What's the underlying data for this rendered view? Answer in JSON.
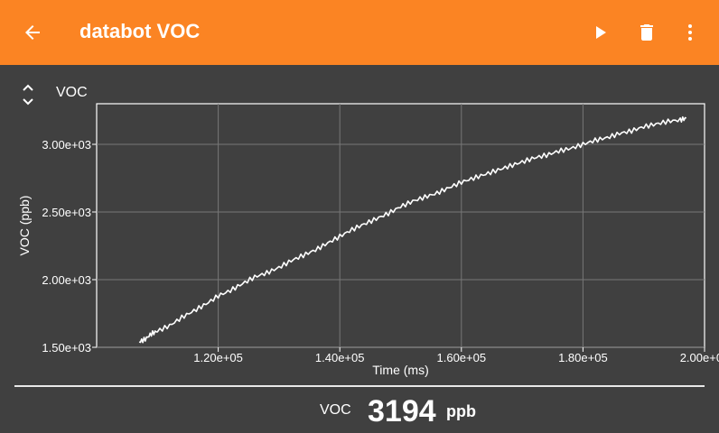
{
  "appbar": {
    "title": "databot VOC",
    "back_icon": "arrow-left-icon",
    "actions": [
      "play-icon",
      "trash-icon",
      "more-vert-icon"
    ],
    "color": "#fb8423"
  },
  "sensor_selector": {
    "label": "VOC",
    "icon": "unfold-icon"
  },
  "chart_data": {
    "type": "line",
    "xlabel": "Time (ms)",
    "ylabel": "VOC (ppb)",
    "xlim": [
      100000,
      200000
    ],
    "ylim": [
      1500,
      3300
    ],
    "xticks": [
      120000,
      140000,
      160000,
      180000,
      200000
    ],
    "xtick_labels": [
      "1.20e+05",
      "1.40e+05",
      "1.60e+05",
      "1.80e+05",
      "2.00e+05"
    ],
    "yticks": [
      1500,
      2000,
      2500,
      3000
    ],
    "ytick_labels": [
      "1.50e+03",
      "2.00e+03",
      "2.50e+03",
      "3.00e+03"
    ],
    "grid": true,
    "line_color": "#ffffff",
    "series": [
      {
        "x": [
          107000,
          108000,
          109000,
          110000,
          112000,
          114000,
          116000,
          118000,
          120000,
          122000,
          124000,
          126000,
          128000,
          130000,
          132000,
          134000,
          136000,
          138000,
          140000,
          142000,
          144000,
          146000,
          148000,
          150000,
          152000,
          154000,
          156000,
          158000,
          160000,
          162000,
          164000,
          166000,
          168000,
          170000,
          172000,
          174000,
          176000,
          178000,
          180000,
          182000,
          184000,
          186000,
          188000,
          190000,
          192000,
          194000,
          196000,
          197000
        ],
        "y": [
          1540,
          1560,
          1600,
          1620,
          1660,
          1720,
          1770,
          1820,
          1880,
          1920,
          1970,
          2020,
          2050,
          2090,
          2140,
          2180,
          2220,
          2270,
          2320,
          2370,
          2410,
          2450,
          2490,
          2540,
          2580,
          2610,
          2640,
          2680,
          2720,
          2750,
          2780,
          2810,
          2840,
          2870,
          2900,
          2920,
          2950,
          2970,
          3000,
          3030,
          3050,
          3080,
          3100,
          3130,
          3150,
          3170,
          3180,
          3194
        ]
      }
    ]
  },
  "readout": {
    "name": "VOC",
    "value": "3194",
    "unit": "ppb"
  }
}
